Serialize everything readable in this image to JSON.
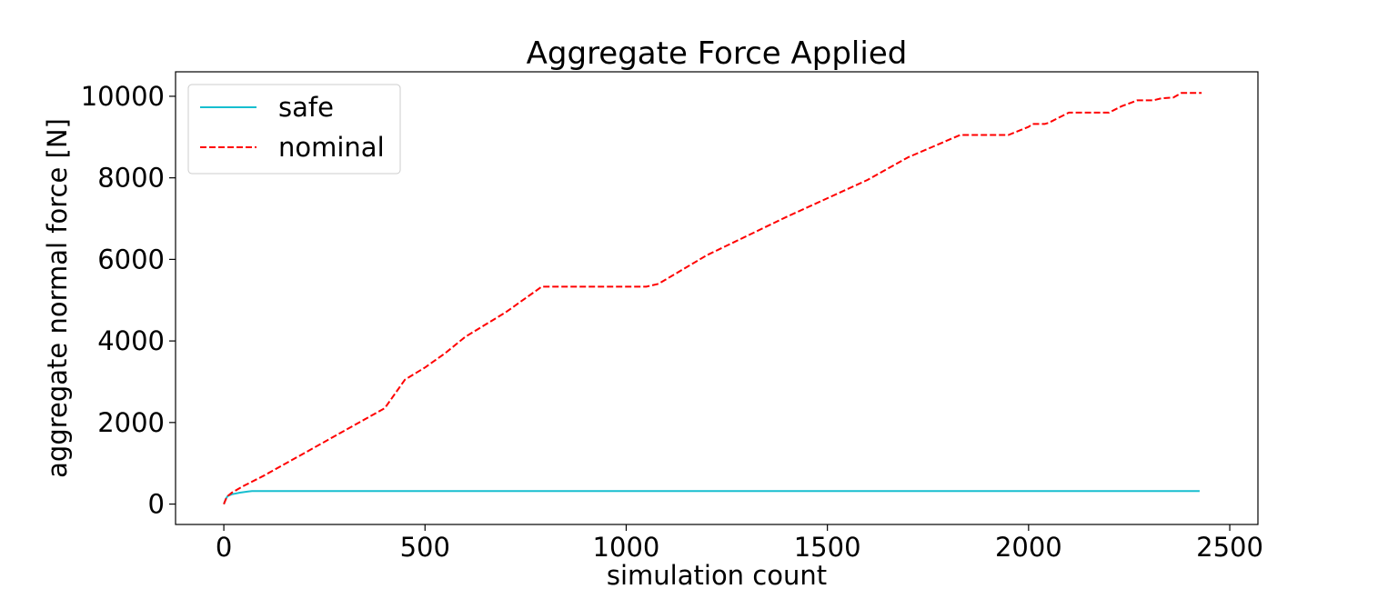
{
  "chart_data": {
    "type": "line",
    "title": "Aggregate Force Applied",
    "xlabel": "simulation count",
    "ylabel": "aggregate normal force [N]",
    "xlim": [
      -120,
      2570
    ],
    "ylim": [
      -500,
      10600
    ],
    "x_ticks": [
      0,
      500,
      1000,
      1500,
      2000,
      2500
    ],
    "y_ticks": [
      0,
      2000,
      4000,
      6000,
      8000,
      10000
    ],
    "x_tick_labels": [
      "0",
      "500",
      "1000",
      "1500",
      "2000",
      "2500"
    ],
    "y_tick_labels": [
      "0",
      "2000",
      "4000",
      "6000",
      "8000",
      "10000"
    ],
    "grid": false,
    "legend_position": "upper-left",
    "series": [
      {
        "name": "safe",
        "color": "#17becf",
        "line_style": "solid",
        "x": [
          0,
          5,
          10,
          20,
          40,
          60,
          70,
          100,
          500,
          1000,
          1500,
          2000,
          2425
        ],
        "y": [
          0,
          130,
          200,
          240,
          280,
          310,
          320,
          320,
          320,
          320,
          320,
          320,
          320
        ]
      },
      {
        "name": "nominal",
        "color": "#ff0000",
        "line_style": "dashed",
        "x": [
          0,
          5,
          10,
          20,
          50,
          100,
          200,
          300,
          400,
          450,
          500,
          550,
          600,
          700,
          790,
          900,
          1000,
          1050,
          1080,
          1200,
          1400,
          1600,
          1700,
          1830,
          1950,
          2000,
          2010,
          2040,
          2050,
          2100,
          2200,
          2230,
          2270,
          2310,
          2330,
          2360,
          2380,
          2430
        ],
        "y": [
          0,
          120,
          200,
          280,
          450,
          700,
          1250,
          1800,
          2350,
          3050,
          3350,
          3700,
          4100,
          4700,
          5330,
          5330,
          5330,
          5330,
          5400,
          6100,
          7050,
          7950,
          8500,
          9050,
          9050,
          9250,
          9320,
          9320,
          9350,
          9600,
          9600,
          9750,
          9900,
          9900,
          9950,
          9970,
          10080,
          10080
        ]
      }
    ]
  }
}
